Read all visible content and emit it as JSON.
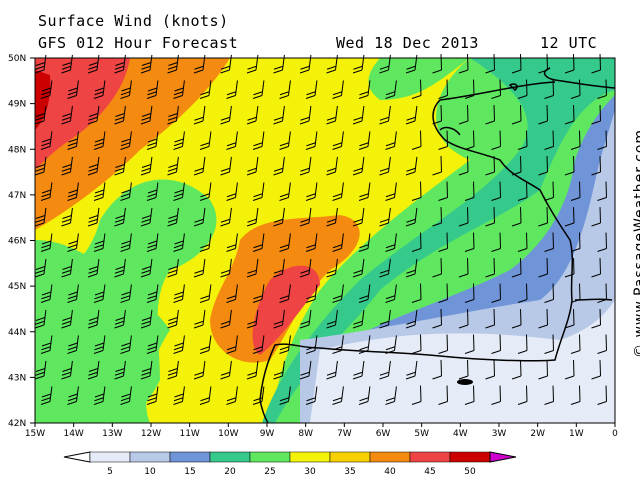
{
  "header": {
    "title": "Surface Wind (knots)",
    "subtitle": "GFS 012 Hour Forecast",
    "date": "Wed 18 Dec 2013",
    "time": "12 UTC"
  },
  "credit": "© www.PassageWeather.com",
  "axes": {
    "lat_labels": [
      "50N",
      "49N",
      "48N",
      "47N",
      "46N",
      "45N",
      "44N",
      "43N",
      "42N"
    ],
    "lon_labels": [
      "15W",
      "14W",
      "13W",
      "12W",
      "11W",
      "10W",
      "9W",
      "8W",
      "7W",
      "6W",
      "5W",
      "4W",
      "3W",
      "2W",
      "1W",
      "0"
    ]
  },
  "legend": {
    "labels": [
      "5",
      "10",
      "15",
      "20",
      "25",
      "30",
      "35",
      "40",
      "45",
      "50"
    ],
    "colors": [
      "#ffffff",
      "#e6ecf7",
      "#b8c9e8",
      "#6f94d8",
      "#36c98c",
      "#5fe85f",
      "#f5f20a",
      "#f7d000",
      "#f48a10",
      "#ef4444",
      "#cc0000",
      "#cc00cc"
    ]
  },
  "map_data": {
    "lon_range": [
      -15,
      0
    ],
    "lat_range": [
      42,
      50
    ],
    "regions": [
      {
        "name": "Bay of Biscay / Brittany / France / N. Spain"
      }
    ]
  }
}
